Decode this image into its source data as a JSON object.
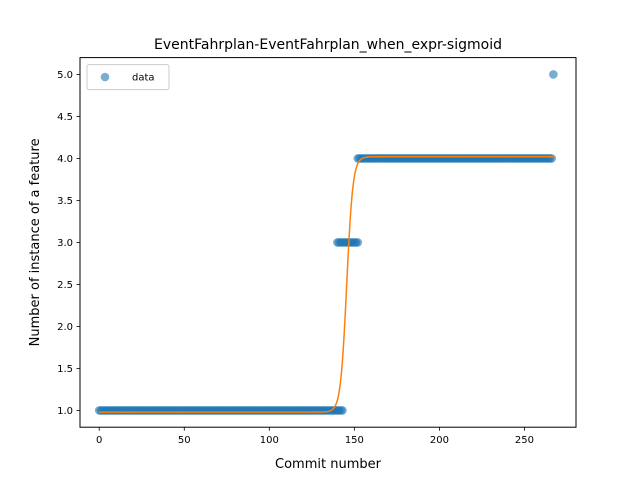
{
  "chart_data": {
    "type": "scatter",
    "title": "EventFahrplan-EventFahrplan_when_expr-sigmoid",
    "xlabel": "Commit number",
    "ylabel": "Number of instance of a feature",
    "xlim": [
      -11.3,
      280.3
    ],
    "ylim": [
      0.8,
      5.2
    ],
    "xticks": [
      0,
      50,
      100,
      150,
      200,
      250
    ],
    "xtick_labels": [
      "0",
      "50",
      "100",
      "150",
      "200",
      "250"
    ],
    "yticks": [
      1.0,
      1.5,
      2.0,
      2.5,
      3.0,
      3.5,
      4.0,
      4.5,
      5.0
    ],
    "ytick_labels": [
      "1.0",
      "1.5",
      "2.0",
      "2.5",
      "3.0",
      "3.5",
      "4.0",
      "4.5",
      "5.0"
    ],
    "legend": {
      "position": "top-left",
      "entries": [
        "data"
      ]
    },
    "colors": {
      "data": "#1f77b4",
      "fit": "#ff7f0e"
    },
    "series": [
      {
        "name": "data",
        "kind": "scatter",
        "segments": [
          {
            "x_start": 0,
            "x_end": 143,
            "y": 1.0
          },
          {
            "x_start": 140,
            "x_end": 152,
            "y": 3.0
          },
          {
            "x_start": 152,
            "x_end": 266,
            "y": 4.0
          },
          {
            "x_start": 267,
            "x_end": 267,
            "y": 5.0
          }
        ]
      },
      {
        "kind": "line",
        "function": "sigmoid",
        "params": {
          "lower": 0.98,
          "upper": 4.02,
          "midpoint": 145.5,
          "slope": 0.55
        },
        "x_range": [
          0,
          267
        ]
      }
    ]
  }
}
